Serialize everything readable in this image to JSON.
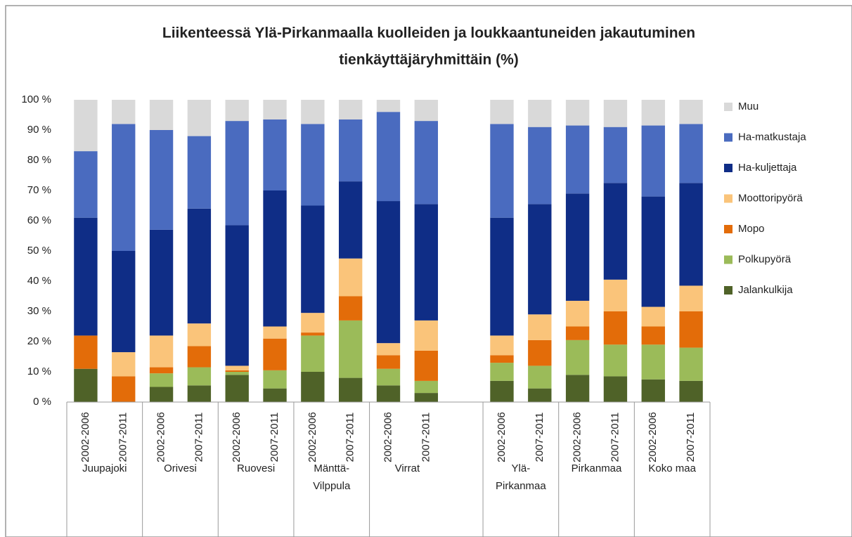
{
  "chart_data": {
    "type": "stacked_bar",
    "title": [
      "Liikenteessä Ylä-Pirkanmaalla kuolleiden ja loukkaantuneiden jakautuminen",
      "tienkäyttäjäryhmittäin (%)"
    ],
    "categories": [
      "2002-2006",
      "2007-2011",
      "2002-2006",
      "2007-2011",
      "2002-2006",
      "2007-2011",
      "2002-2006",
      "2007-2011",
      "2002-2006",
      "2007-2011",
      null,
      "2002-2006",
      "2007-2011",
      "2002-2006",
      "2007-2011",
      "2002-2006",
      "2007-2011"
    ],
    "groups": [
      {
        "lines": [
          "Juupajoki"
        ],
        "count": 2
      },
      {
        "lines": [
          "Orivesi"
        ],
        "count": 2
      },
      {
        "lines": [
          "Ruovesi"
        ],
        "count": 2
      },
      {
        "lines": [
          "Mänttä-",
          "Vilppula"
        ],
        "count": 2
      },
      {
        "lines": [
          "Virrat"
        ],
        "count": 3
      },
      {
        "lines": [
          "Ylä-",
          "Pirkanmaa"
        ],
        "count": 2
      },
      {
        "lines": [
          "Pirkanmaa"
        ],
        "count": 2
      },
      {
        "lines": [
          "Koko maa"
        ],
        "count": 2
      }
    ],
    "series": [
      {
        "name": "Jalankulkija",
        "color": "#4f6228",
        "values": [
          11,
          0,
          5,
          5.5,
          9,
          4.5,
          10,
          8,
          5.5,
          3,
          null,
          7,
          4.5,
          9,
          8.5,
          7.5,
          7
        ]
      },
      {
        "name": "Polkupyörä",
        "color": "#9bbb59",
        "values": [
          0,
          0,
          4.5,
          6,
          1,
          6,
          12,
          19,
          5.5,
          4,
          null,
          6,
          7.5,
          11.5,
          10.5,
          11.5,
          11
        ]
      },
      {
        "name": "Mopo",
        "color": "#e36c09",
        "values": [
          11,
          8.5,
          2,
          7,
          0.5,
          10.5,
          1,
          8,
          4.5,
          10,
          null,
          2.5,
          8.5,
          4.5,
          11,
          6,
          12
        ]
      },
      {
        "name": "Moottoripyörä",
        "color": "#fac47a",
        "values": [
          0,
          8,
          10.5,
          7.5,
          1.5,
          4,
          6.5,
          12.5,
          4,
          10,
          null,
          6.5,
          8.5,
          8.5,
          10.5,
          6.5,
          8.5
        ]
      },
      {
        "name": "Ha-kuljettaja",
        "color": "#0f2d86",
        "values": [
          39,
          33.5,
          35,
          38,
          46.5,
          45,
          35.5,
          25.5,
          47,
          38.5,
          null,
          39,
          36.5,
          35.5,
          32,
          36.5,
          34
        ]
      },
      {
        "name": "Ha-matkustaja",
        "color": "#4a6bbf",
        "values": [
          22,
          42,
          33,
          24,
          34.5,
          23.5,
          27,
          20.5,
          29.5,
          27.5,
          null,
          31,
          25.5,
          22.5,
          18.5,
          23.5,
          19.5
        ]
      },
      {
        "name": "Muu",
        "color": "#d9d9d9",
        "values": [
          17,
          8,
          10,
          12,
          7,
          6.5,
          8,
          6.5,
          4,
          7,
          null,
          8,
          9,
          8.5,
          9,
          8.5,
          8
        ]
      }
    ],
    "ylim": [
      0,
      100
    ],
    "yticks": [
      {
        "value": 0,
        "label": "0 %"
      },
      {
        "value": 10,
        "label": "10 %"
      },
      {
        "value": 20,
        "label": "20 %"
      },
      {
        "value": 30,
        "label": "30 %"
      },
      {
        "value": 40,
        "label": "40 %"
      },
      {
        "value": 50,
        "label": "50 %"
      },
      {
        "value": 60,
        "label": "60 %"
      },
      {
        "value": 70,
        "label": "70 %"
      },
      {
        "value": 80,
        "label": "80 %"
      },
      {
        "value": 90,
        "label": "90 %"
      },
      {
        "value": 100,
        "label": "100 %"
      }
    ],
    "grid": false,
    "legend": "right"
  }
}
